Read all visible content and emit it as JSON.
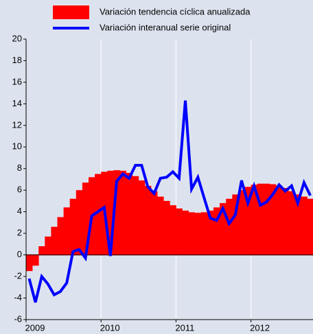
{
  "chart_data": {
    "type": "bar",
    "categories": [
      "2009",
      null,
      null,
      null,
      null,
      null,
      null,
      null,
      null,
      null,
      null,
      null,
      "2010",
      null,
      null,
      null,
      null,
      null,
      null,
      null,
      null,
      null,
      null,
      null,
      "2011",
      null,
      null,
      null,
      null,
      null,
      null,
      null,
      null,
      null,
      null,
      null,
      "2012",
      null,
      null,
      null,
      null,
      null,
      null,
      null,
      null,
      null
    ],
    "series": [
      {
        "name": "Variación tendencia cíclica anualizada",
        "type": "bar",
        "color": "#ff0000",
        "values": [
          -1.5,
          -1.0,
          0.8,
          1.7,
          2.6,
          3.5,
          4.4,
          5.2,
          6.0,
          6.7,
          7.2,
          7.5,
          7.7,
          7.8,
          7.85,
          7.8,
          7.6,
          7.3,
          6.9,
          6.4,
          5.9,
          5.4,
          5.0,
          4.6,
          4.3,
          4.1,
          3.95,
          3.9,
          3.95,
          4.1,
          4.4,
          4.8,
          5.2,
          5.6,
          6.0,
          6.3,
          6.5,
          6.6,
          6.6,
          6.55,
          6.4,
          6.2,
          5.9,
          5.6,
          5.4,
          5.2
        ]
      },
      {
        "name": "Variación interanual serie original",
        "type": "line",
        "color": "#0000ff",
        "values": [
          -2.2,
          -4.4,
          -2.0,
          -2.7,
          -3.7,
          -3.4,
          -2.6,
          0.3,
          0.5,
          -0.3,
          3.6,
          4.0,
          4.4,
          -0.1,
          6.8,
          7.5,
          7.1,
          8.3,
          8.3,
          6.3,
          5.7,
          7.1,
          7.2,
          7.7,
          7.1,
          14.3,
          6.1,
          7.2,
          5.3,
          3.4,
          3.2,
          4.3,
          2.9,
          3.7,
          6.9,
          4.8,
          6.4,
          4.6,
          4.9,
          5.6,
          6.5,
          5.9,
          6.4,
          4.8,
          6.7,
          5.5
        ]
      }
    ],
    "ylim": [
      -6,
      20
    ],
    "yticks": [
      -6,
      -4,
      -2,
      0,
      2,
      4,
      6,
      8,
      10,
      12,
      14,
      16,
      18,
      20
    ],
    "grid": true
  }
}
